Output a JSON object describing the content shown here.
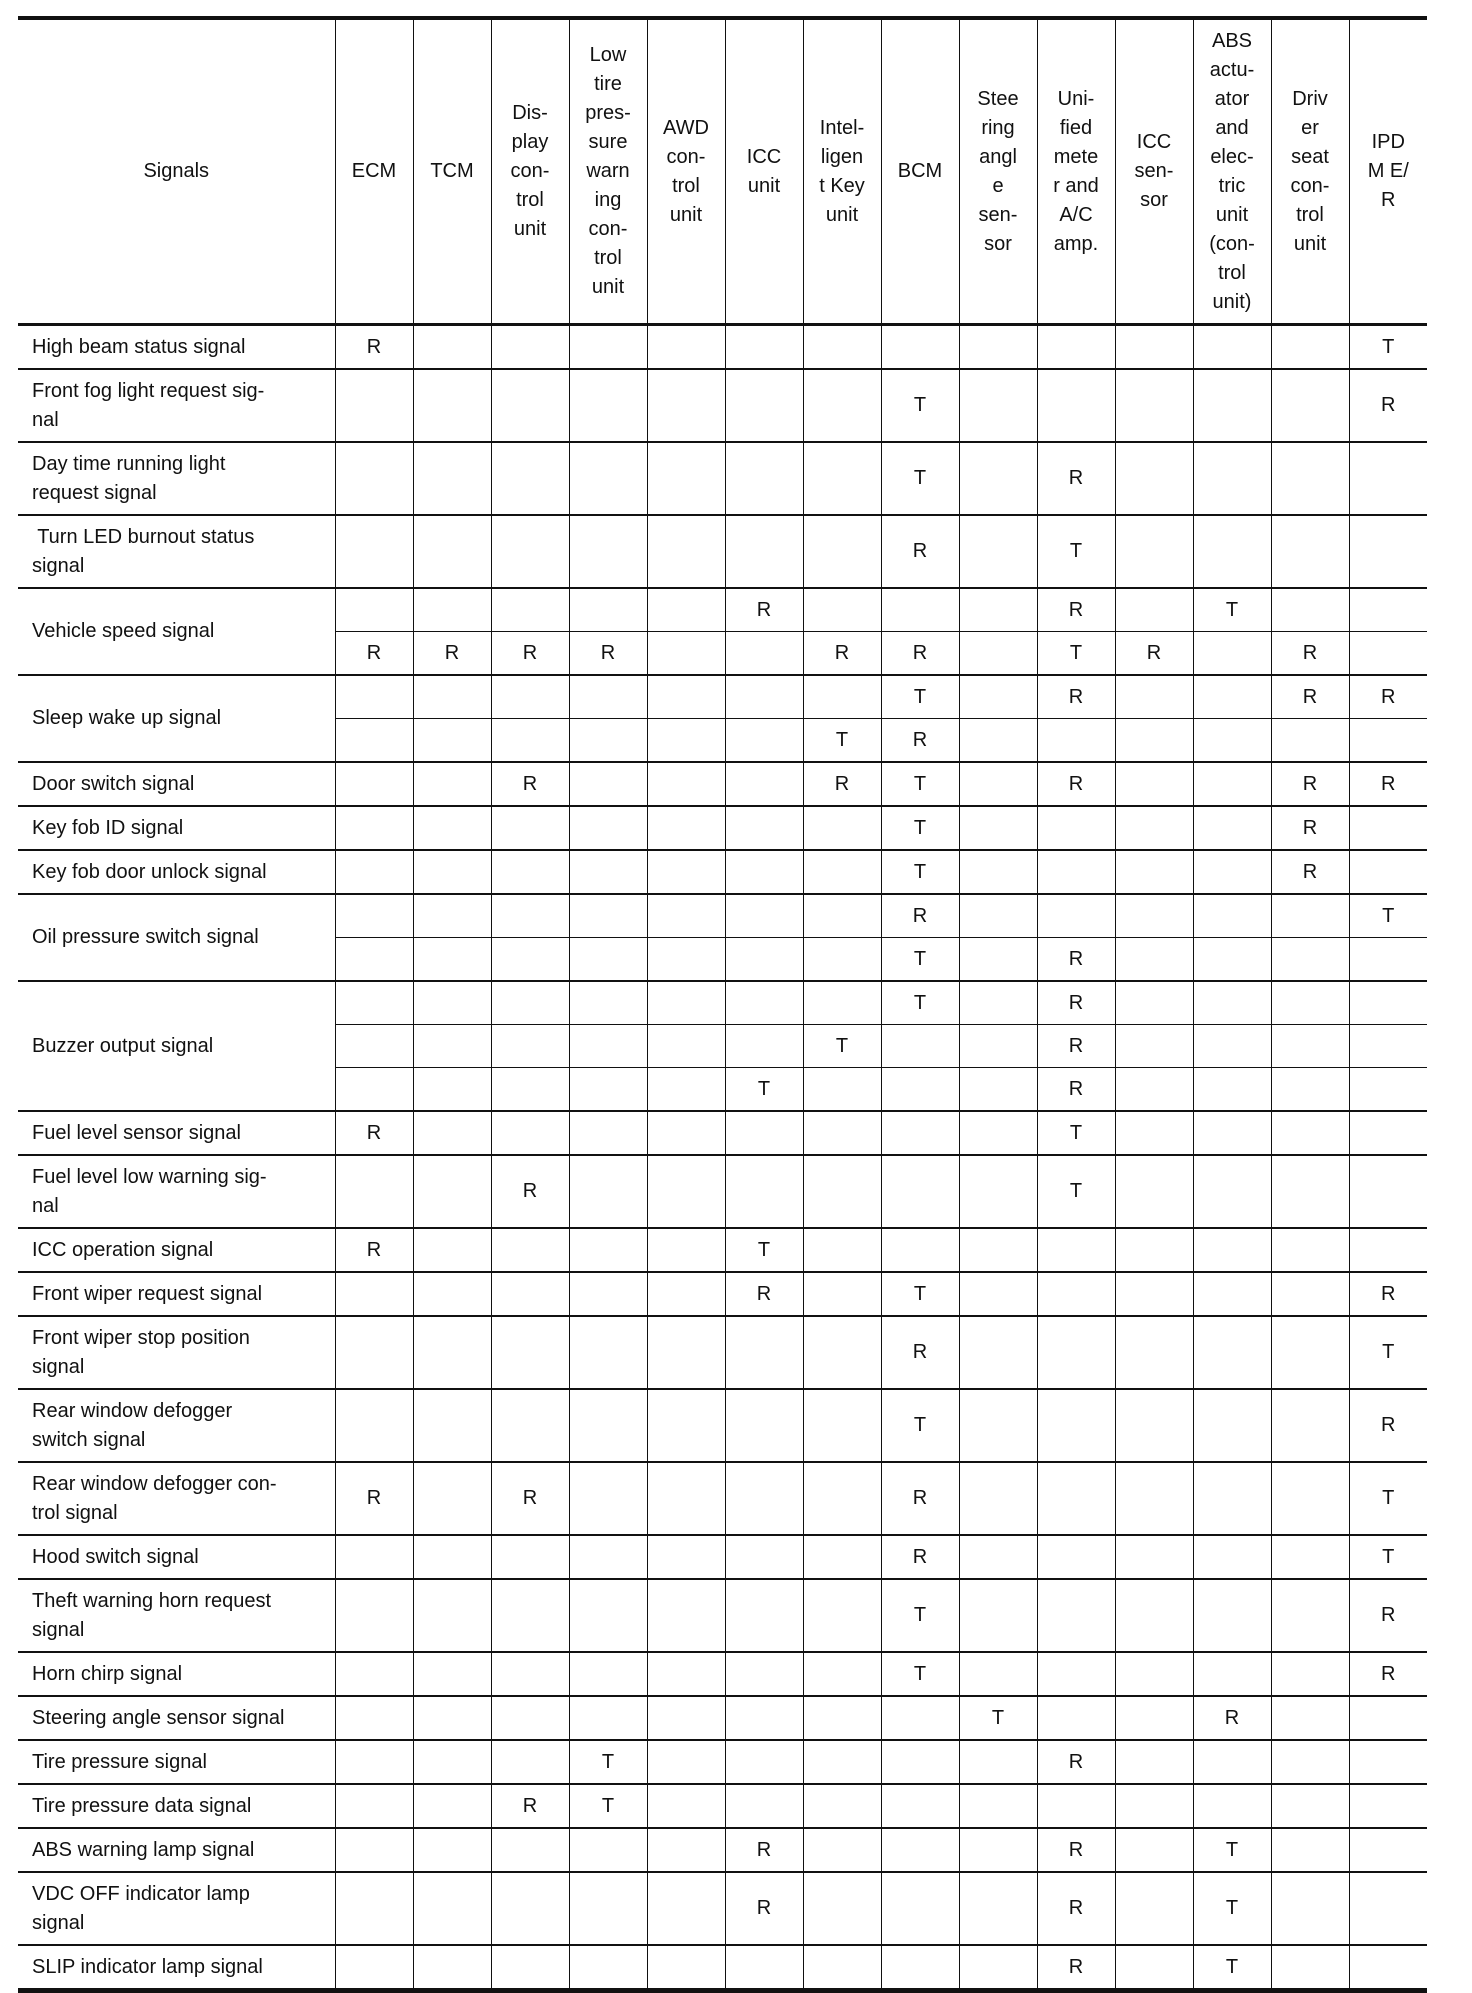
{
  "table": {
    "signals_header": "Signals",
    "columns": [
      "ECM",
      "TCM",
      "Dis-\nplay\ncon-\ntrol\nunit",
      "Low\ntire\npres-\nsure\nwarn\ning\ncon-\ntrol\nunit",
      "AWD\ncon-\ntrol\nunit",
      "ICC\nunit",
      "Intel-\nligen\nt Key\nunit",
      "BCM",
      "Stee\nring\nangl\ne\nsen-\nsor",
      "Uni-\nfied\nmete\nr and\nA/C\namp.",
      "ICC\nsen-\nsor",
      "ABS\nactu-\nator\nand\nelec-\ntric\nunit\n(con-\ntrol\nunit)",
      "Driv\ner\nseat\ncon-\ntrol\nunit",
      "IPD\nM E/\nR"
    ],
    "groups": [
      {
        "signal": "High beam status signal",
        "rows": [
          [
            "R",
            "",
            "",
            "",
            "",
            "",
            "",
            "",
            "",
            "",
            "",
            "",
            "",
            "T"
          ]
        ]
      },
      {
        "signal": "Front fog light request sig-\nnal",
        "rows": [
          [
            "",
            "",
            "",
            "",
            "",
            "",
            "",
            "T",
            "",
            "",
            "",
            "",
            "",
            "R"
          ]
        ]
      },
      {
        "signal": "Day time running light\nrequest signal",
        "rows": [
          [
            "",
            "",
            "",
            "",
            "",
            "",
            "",
            "T",
            "",
            "R",
            "",
            "",
            "",
            ""
          ]
        ]
      },
      {
        "signal": " Turn LED burnout status\nsignal",
        "rows": [
          [
            "",
            "",
            "",
            "",
            "",
            "",
            "",
            "R",
            "",
            "T",
            "",
            "",
            "",
            ""
          ]
        ]
      },
      {
        "signal": "Vehicle speed signal",
        "rows": [
          [
            "",
            "",
            "",
            "",
            "",
            "R",
            "",
            "",
            "",
            "R",
            "",
            "T",
            "",
            ""
          ],
          [
            "R",
            "R",
            "R",
            "R",
            "",
            "",
            "R",
            "R",
            "",
            "T",
            "R",
            "",
            "R",
            ""
          ]
        ]
      },
      {
        "signal": "Sleep wake up signal",
        "rows": [
          [
            "",
            "",
            "",
            "",
            "",
            "",
            "",
            "T",
            "",
            "R",
            "",
            "",
            "R",
            "R"
          ],
          [
            "",
            "",
            "",
            "",
            "",
            "",
            "T",
            "R",
            "",
            "",
            "",
            "",
            "",
            ""
          ]
        ]
      },
      {
        "signal": "Door switch signal",
        "rows": [
          [
            "",
            "",
            "R",
            "",
            "",
            "",
            "R",
            "T",
            "",
            "R",
            "",
            "",
            "R",
            "R"
          ]
        ]
      },
      {
        "signal": "Key fob ID signal",
        "rows": [
          [
            "",
            "",
            "",
            "",
            "",
            "",
            "",
            "T",
            "",
            "",
            "",
            "",
            "R",
            ""
          ]
        ]
      },
      {
        "signal": "Key fob door unlock signal",
        "rows": [
          [
            "",
            "",
            "",
            "",
            "",
            "",
            "",
            "T",
            "",
            "",
            "",
            "",
            "R",
            ""
          ]
        ]
      },
      {
        "signal": "Oil pressure switch signal",
        "rows": [
          [
            "",
            "",
            "",
            "",
            "",
            "",
            "",
            "R",
            "",
            "",
            "",
            "",
            "",
            "T"
          ],
          [
            "",
            "",
            "",
            "",
            "",
            "",
            "",
            "T",
            "",
            "R",
            "",
            "",
            "",
            ""
          ]
        ]
      },
      {
        "signal": "Buzzer output signal",
        "rows": [
          [
            "",
            "",
            "",
            "",
            "",
            "",
            "",
            "T",
            "",
            "R",
            "",
            "",
            "",
            ""
          ],
          [
            "",
            "",
            "",
            "",
            "",
            "",
            "T",
            "",
            "",
            "R",
            "",
            "",
            "",
            ""
          ],
          [
            "",
            "",
            "",
            "",
            "",
            "T",
            "",
            "",
            "",
            "R",
            "",
            "",
            "",
            ""
          ]
        ]
      },
      {
        "signal": "Fuel level sensor signal",
        "rows": [
          [
            "R",
            "",
            "",
            "",
            "",
            "",
            "",
            "",
            "",
            "T",
            "",
            "",
            "",
            ""
          ]
        ]
      },
      {
        "signal": "Fuel level low warning sig-\nnal",
        "rows": [
          [
            "",
            "",
            "R",
            "",
            "",
            "",
            "",
            "",
            "",
            "T",
            "",
            "",
            "",
            ""
          ]
        ]
      },
      {
        "signal": "ICC operation signal",
        "rows": [
          [
            "R",
            "",
            "",
            "",
            "",
            "T",
            "",
            "",
            "",
            "",
            "",
            "",
            "",
            ""
          ]
        ]
      },
      {
        "signal": "Front wiper request signal",
        "rows": [
          [
            "",
            "",
            "",
            "",
            "",
            "R",
            "",
            "T",
            "",
            "",
            "",
            "",
            "",
            "R"
          ]
        ]
      },
      {
        "signal": "Front wiper stop position\nsignal",
        "rows": [
          [
            "",
            "",
            "",
            "",
            "",
            "",
            "",
            "R",
            "",
            "",
            "",
            "",
            "",
            "T"
          ]
        ]
      },
      {
        "signal": "Rear window defogger\nswitch signal",
        "rows": [
          [
            "",
            "",
            "",
            "",
            "",
            "",
            "",
            "T",
            "",
            "",
            "",
            "",
            "",
            "R"
          ]
        ]
      },
      {
        "signal": "Rear window defogger con-\ntrol signal",
        "rows": [
          [
            "R",
            "",
            "R",
            "",
            "",
            "",
            "",
            "R",
            "",
            "",
            "",
            "",
            "",
            "T"
          ]
        ]
      },
      {
        "signal": "Hood switch signal",
        "rows": [
          [
            "",
            "",
            "",
            "",
            "",
            "",
            "",
            "R",
            "",
            "",
            "",
            "",
            "",
            "T"
          ]
        ]
      },
      {
        "signal": "Theft warning horn request\nsignal",
        "rows": [
          [
            "",
            "",
            "",
            "",
            "",
            "",
            "",
            "T",
            "",
            "",
            "",
            "",
            "",
            "R"
          ]
        ]
      },
      {
        "signal": "Horn chirp signal",
        "rows": [
          [
            "",
            "",
            "",
            "",
            "",
            "",
            "",
            "T",
            "",
            "",
            "",
            "",
            "",
            "R"
          ]
        ]
      },
      {
        "signal": "Steering angle sensor signal",
        "rows": [
          [
            "",
            "",
            "",
            "",
            "",
            "",
            "",
            "",
            "T",
            "",
            "",
            "R",
            "",
            ""
          ]
        ]
      },
      {
        "signal": "Tire pressure signal",
        "rows": [
          [
            "",
            "",
            "",
            "T",
            "",
            "",
            "",
            "",
            "",
            "R",
            "",
            "",
            "",
            ""
          ]
        ]
      },
      {
        "signal": "Tire pressure data signal",
        "rows": [
          [
            "",
            "",
            "R",
            "T",
            "",
            "",
            "",
            "",
            "",
            "",
            "",
            "",
            "",
            ""
          ]
        ]
      },
      {
        "signal": "ABS warning lamp signal",
        "rows": [
          [
            "",
            "",
            "",
            "",
            "",
            "R",
            "",
            "",
            "",
            "R",
            "",
            "T",
            "",
            ""
          ]
        ]
      },
      {
        "signal": "VDC OFF indicator lamp\nsignal",
        "rows": [
          [
            "",
            "",
            "",
            "",
            "",
            "R",
            "",
            "",
            "",
            "R",
            "",
            "T",
            "",
            ""
          ]
        ]
      },
      {
        "signal": "SLIP indicator lamp signal",
        "rows": [
          [
            "",
            "",
            "",
            "",
            "",
            "",
            "",
            "",
            "",
            "R",
            "",
            "T",
            "",
            ""
          ]
        ]
      }
    ]
  }
}
